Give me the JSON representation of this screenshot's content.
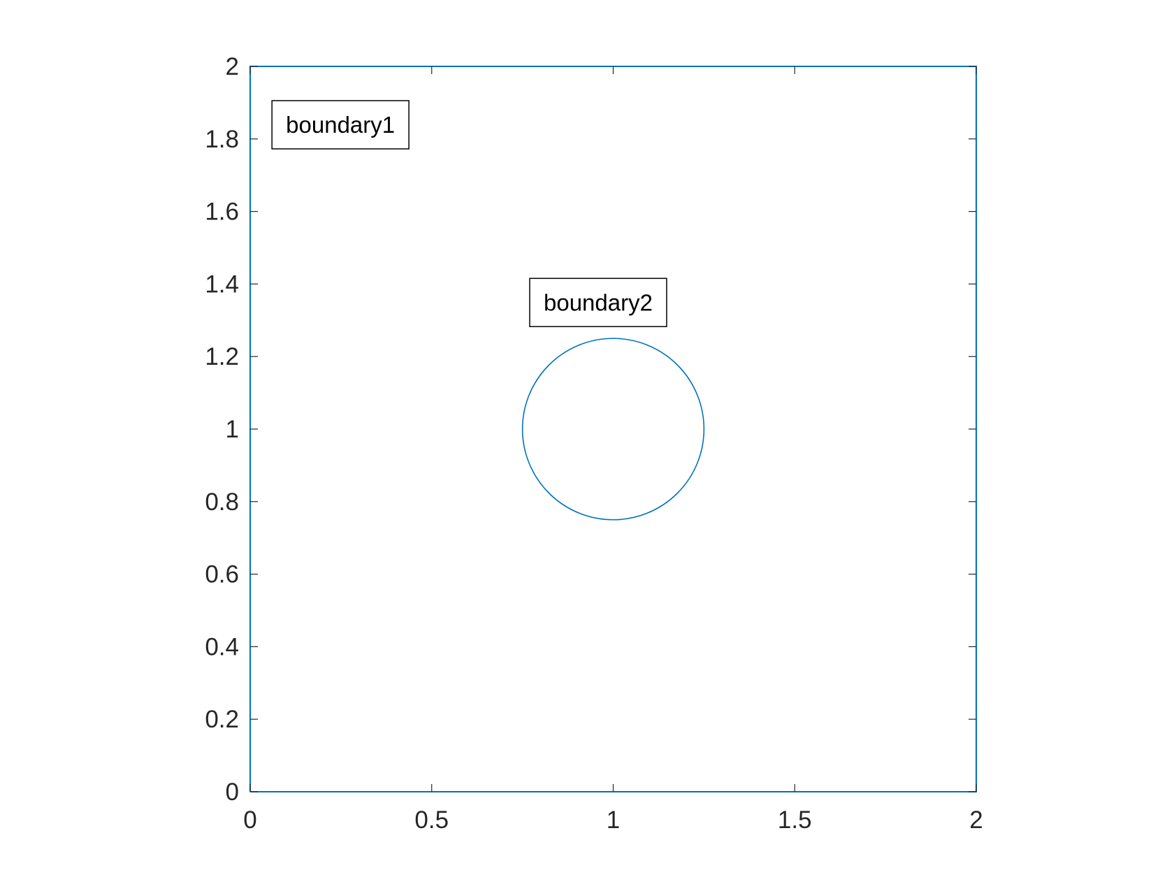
{
  "chart_data": {
    "type": "line",
    "title": "",
    "xlabel": "",
    "ylabel": "",
    "xlim": [
      0,
      2
    ],
    "ylim": [
      0,
      2
    ],
    "grid": false,
    "aspect": "equal",
    "x_ticks": [
      0,
      0.5,
      1,
      1.5,
      2
    ],
    "x_tick_labels": [
      "0",
      "0.5",
      "1",
      "1.5",
      "2"
    ],
    "y_ticks": [
      0,
      0.2,
      0.4,
      0.6,
      0.8,
      1,
      1.2,
      1.4,
      1.6,
      1.8,
      2
    ],
    "y_tick_labels": [
      "0",
      "0.2",
      "0.4",
      "0.6",
      "0.8",
      "1",
      "1.2",
      "1.4",
      "1.6",
      "1.8",
      "2"
    ],
    "series": [
      {
        "shape": "square",
        "x": [
          0,
          2,
          2,
          0,
          0
        ],
        "y": [
          0,
          0,
          2,
          2,
          0
        ],
        "color": "#0072BD"
      },
      {
        "shape": "circle",
        "center": [
          1,
          1
        ],
        "radius": 0.25,
        "color": "#0072BD"
      }
    ],
    "annotations": [
      {
        "text": "boundary1",
        "x": 0.06,
        "y": 1.84
      },
      {
        "text": "boundary2",
        "x": 0.77,
        "y": 1.35
      }
    ]
  }
}
